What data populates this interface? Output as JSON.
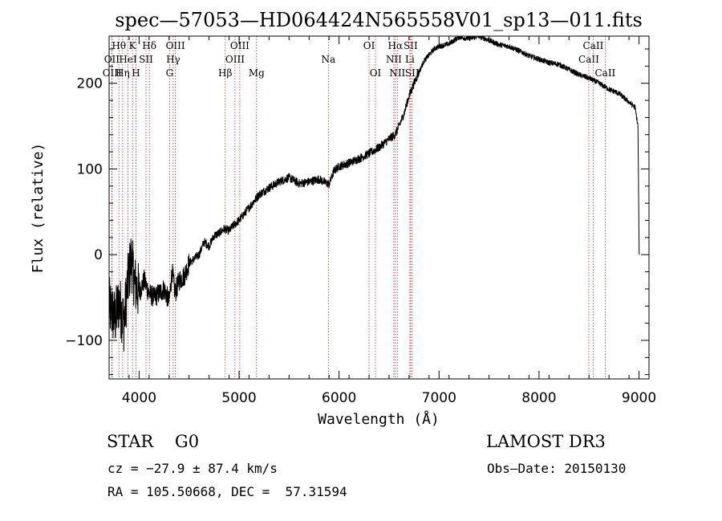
{
  "chart_data": {
    "type": "line",
    "title": "spec—57053—HD064424N565558V01_sp13—011.fits",
    "xlabel": "Wavelength (Å)",
    "ylabel": "Flux (relative)",
    "xlim": [
      3700,
      9100
    ],
    "ylim": [
      -145,
      255
    ],
    "xticks": [
      4000,
      5000,
      6000,
      7000,
      8000,
      9000
    ],
    "yticks": [
      -100,
      0,
      100,
      200
    ],
    "series": [
      {
        "name": "spectrum",
        "continuum": [
          [
            3700,
            -60
          ],
          [
            3760,
            -75
          ],
          [
            3800,
            -55
          ],
          [
            3850,
            -80
          ],
          [
            3880,
            -40
          ],
          [
            3920,
            -5
          ],
          [
            3960,
            -35
          ],
          [
            4000,
            -45
          ],
          [
            4050,
            -30
          ],
          [
            4100,
            -45
          ],
          [
            4150,
            -50
          ],
          [
            4200,
            -45
          ],
          [
            4250,
            -40
          ],
          [
            4300,
            -55
          ],
          [
            4330,
            -20
          ],
          [
            4360,
            -45
          ],
          [
            4400,
            -30
          ],
          [
            4450,
            -25
          ],
          [
            4500,
            -10
          ],
          [
            4550,
            -5
          ],
          [
            4600,
            0
          ],
          [
            4650,
            15
          ],
          [
            4700,
            10
          ],
          [
            4750,
            22
          ],
          [
            4800,
            25
          ],
          [
            4850,
            30
          ],
          [
            4900,
            28
          ],
          [
            4950,
            35
          ],
          [
            5000,
            40
          ],
          [
            5100,
            55
          ],
          [
            5200,
            70
          ],
          [
            5300,
            78
          ],
          [
            5400,
            85
          ],
          [
            5500,
            90
          ],
          [
            5600,
            83
          ],
          [
            5700,
            85
          ],
          [
            5800,
            88
          ],
          [
            5900,
            82
          ],
          [
            5950,
            98
          ],
          [
            6000,
            103
          ],
          [
            6100,
            107
          ],
          [
            6200,
            112
          ],
          [
            6300,
            118
          ],
          [
            6400,
            125
          ],
          [
            6500,
            135
          ],
          [
            6560,
            140
          ],
          [
            6600,
            150
          ],
          [
            6650,
            165
          ],
          [
            6700,
            185
          ],
          [
            6750,
            200
          ],
          [
            6800,
            213
          ],
          [
            6850,
            226
          ],
          [
            6900,
            233
          ],
          [
            6950,
            240
          ],
          [
            7000,
            243
          ],
          [
            7100,
            246
          ],
          [
            7200,
            254
          ],
          [
            7300,
            252
          ],
          [
            7400,
            255
          ],
          [
            7500,
            250
          ],
          [
            7600,
            245
          ],
          [
            7700,
            243
          ],
          [
            7800,
            238
          ],
          [
            7900,
            232
          ],
          [
            8000,
            228
          ],
          [
            8100,
            224
          ],
          [
            8200,
            222
          ],
          [
            8300,
            216
          ],
          [
            8400,
            210
          ],
          [
            8500,
            206
          ],
          [
            8600,
            200
          ],
          [
            8700,
            193
          ],
          [
            8800,
            188
          ],
          [
            8900,
            178
          ],
          [
            8960,
            172
          ],
          [
            8990,
            150
          ],
          [
            9000,
            20
          ],
          [
            9002,
            0
          ]
        ]
      }
    ],
    "line_markers": [
      {
        "label": "Hθ",
        "wave": 3798,
        "row": 0
      },
      {
        "label": "OII",
        "wave": 3727,
        "row": 1
      },
      {
        "label": "OIII",
        "wave": 3730,
        "row": 2
      },
      {
        "label": "Hη",
        "wave": 3835,
        "row": 2
      },
      {
        "label": "HeI",
        "wave": 3889,
        "row": 1
      },
      {
        "label": "K",
        "wave": 3934,
        "row": 0
      },
      {
        "label": "H",
        "wave": 3969,
        "row": 2
      },
      {
        "label": "SII",
        "wave": 4069,
        "row": 1
      },
      {
        "label": "Hδ",
        "wave": 4102,
        "row": 0
      },
      {
        "label": "G",
        "wave": 4305,
        "row": 2
      },
      {
        "label": "Hγ",
        "wave": 4341,
        "row": 1
      },
      {
        "label": "OIII",
        "wave": 4363,
        "row": 0
      },
      {
        "label": "Hβ",
        "wave": 4861,
        "row": 2
      },
      {
        "label": "OIII",
        "wave": 4959,
        "row": 1
      },
      {
        "label": "OIII",
        "wave": 5007,
        "row": 0
      },
      {
        "label": "Mg",
        "wave": 5175,
        "row": 2
      },
      {
        "label": "Na",
        "wave": 5893,
        "row": 1
      },
      {
        "label": "OI",
        "wave": 6300,
        "row": 0
      },
      {
        "label": "OI",
        "wave": 6364,
        "row": 2
      },
      {
        "label": "NII",
        "wave": 6548,
        "row": 1
      },
      {
        "label": "Hα",
        "wave": 6563,
        "row": 0
      },
      {
        "label": "NII",
        "wave": 6583,
        "row": 2
      },
      {
        "label": "Li",
        "wave": 6708,
        "row": 1
      },
      {
        "label": "SII",
        "wave": 6716,
        "row": 0
      },
      {
        "label": "SII",
        "wave": 6731,
        "row": 2
      },
      {
        "label": "CaII",
        "wave": 8498,
        "row": 1
      },
      {
        "label": "CaII",
        "wave": 8542,
        "row": 0
      },
      {
        "label": "CaII",
        "wave": 8662,
        "row": 2
      }
    ]
  },
  "info": {
    "class": "STAR    G0",
    "survey": "LAMOST DR3",
    "cz": "cz = −27.9 ± 87.4 km/s",
    "obs_date": "Obs—Date: 20150130",
    "coords": "RA = 105.50668, DEC =  57.31594"
  }
}
